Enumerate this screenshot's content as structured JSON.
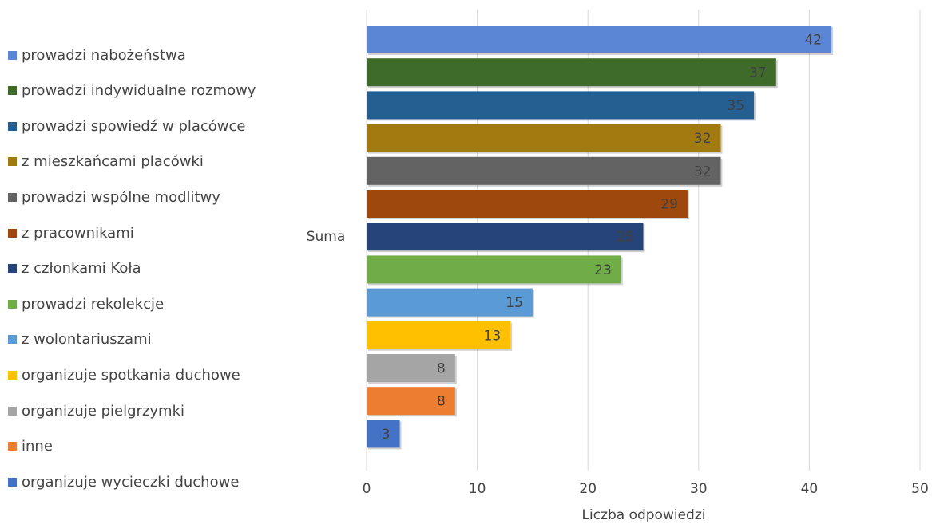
{
  "chart_data": {
    "type": "bar",
    "orientation": "horizontal",
    "category_label": "Suma",
    "xlabel": "Liczba odpowiedzi",
    "xlim": [
      0,
      50
    ],
    "xticks": [
      0,
      10,
      20,
      30,
      40,
      50
    ],
    "grid": true,
    "legend_position": "left",
    "series": [
      {
        "name": "prowadzi nabożeństwa",
        "value": 42,
        "color": "#5B86D6"
      },
      {
        "name": "prowadzi indywidualne rozmowy",
        "value": 37,
        "color": "#3F6B2A"
      },
      {
        "name": "prowadzi spowiedź w placówce",
        "value": 35,
        "color": "#255E91"
      },
      {
        "name": "z mieszkańcami placówki",
        "value": 32,
        "color": "#A37A10"
      },
      {
        "name": "prowadzi wspólne modlitwy",
        "value": 32,
        "color": "#636363"
      },
      {
        "name": "z pracownikami",
        "value": 29,
        "color": "#9E480E"
      },
      {
        "name": "z członkami Koła",
        "value": 25,
        "color": "#264478"
      },
      {
        "name": "prowadzi rekolekcje",
        "value": 23,
        "color": "#70AD47"
      },
      {
        "name": "z wolontariuszami",
        "value": 15,
        "color": "#5B9BD5"
      },
      {
        "name": "organizuje spotkania duchowe",
        "value": 13,
        "color": "#FFC000"
      },
      {
        "name": "organizuje pielgrzymki",
        "value": 8,
        "color": "#A5A5A5"
      },
      {
        "name": "inne",
        "value": 8,
        "color": "#ED7D31"
      },
      {
        "name": "organizuje wycieczki duchowe",
        "value": 3,
        "color": "#4472C4"
      }
    ]
  }
}
